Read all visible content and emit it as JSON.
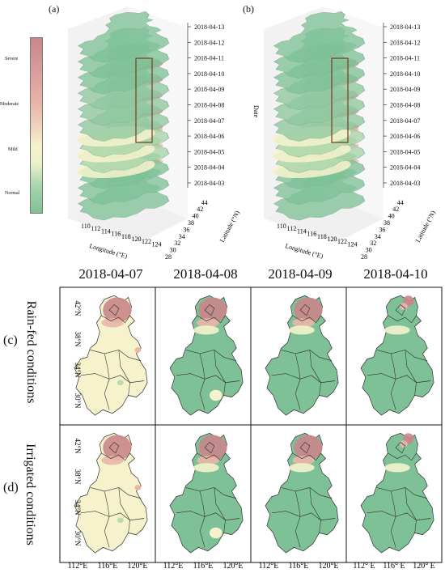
{
  "top_panels": {
    "a": {
      "label": "(a)"
    },
    "b": {
      "label": "(b)"
    }
  },
  "legend": {
    "levels": [
      "Severe",
      "Moderate",
      "Mild",
      "Normal"
    ],
    "colors": {
      "severe": "#c98689",
      "moderate": "#e9b6a8",
      "mild": "#f6f3cc",
      "normal": "#7fc197"
    }
  },
  "axes3d": {
    "date_label": "Date",
    "dates": [
      "2018-04-13",
      "2018-04-12",
      "2018-04-11",
      "2018-04-10",
      "2018-04-09",
      "2018-04-08",
      "2018-04-07",
      "2018-04-06",
      "2018-04-05",
      "2018-04-04",
      "2018-04-03"
    ],
    "longitude_label": "Longitude (°E)",
    "longitude_ticks": [
      "110",
      "112",
      "114",
      "116",
      "118",
      "120",
      "122",
      "124"
    ],
    "latitude_label": "Latitude (°N)",
    "latitude_ticks": [
      "28",
      "30",
      "32",
      "34",
      "36",
      "38",
      "40",
      "42",
      "44"
    ]
  },
  "grid": {
    "dates": [
      "2018-04-07",
      "2018-04-08",
      "2018-04-09",
      "2018-04-10"
    ],
    "rows": [
      {
        "letter": "(c)",
        "label": "Rain-fed conditions"
      },
      {
        "letter": "(d)",
        "label": "Irrigated conditions"
      }
    ],
    "lat_ticks": [
      "42°N",
      "38°N",
      "34°N",
      "30°N"
    ],
    "lon_ticks_std": [
      "112°E",
      "116°E",
      "120°E"
    ],
    "lon_ticks_last": [
      "112°  E",
      "116°  E",
      "120°  E"
    ],
    "maps": [
      [
        "mild-dominant",
        "normal-dominant",
        "normal-dominant",
        "normal-dominant"
      ],
      [
        "mild-dominant",
        "normal-dominant",
        "normal-dominant",
        "normal-dominant"
      ]
    ]
  }
}
